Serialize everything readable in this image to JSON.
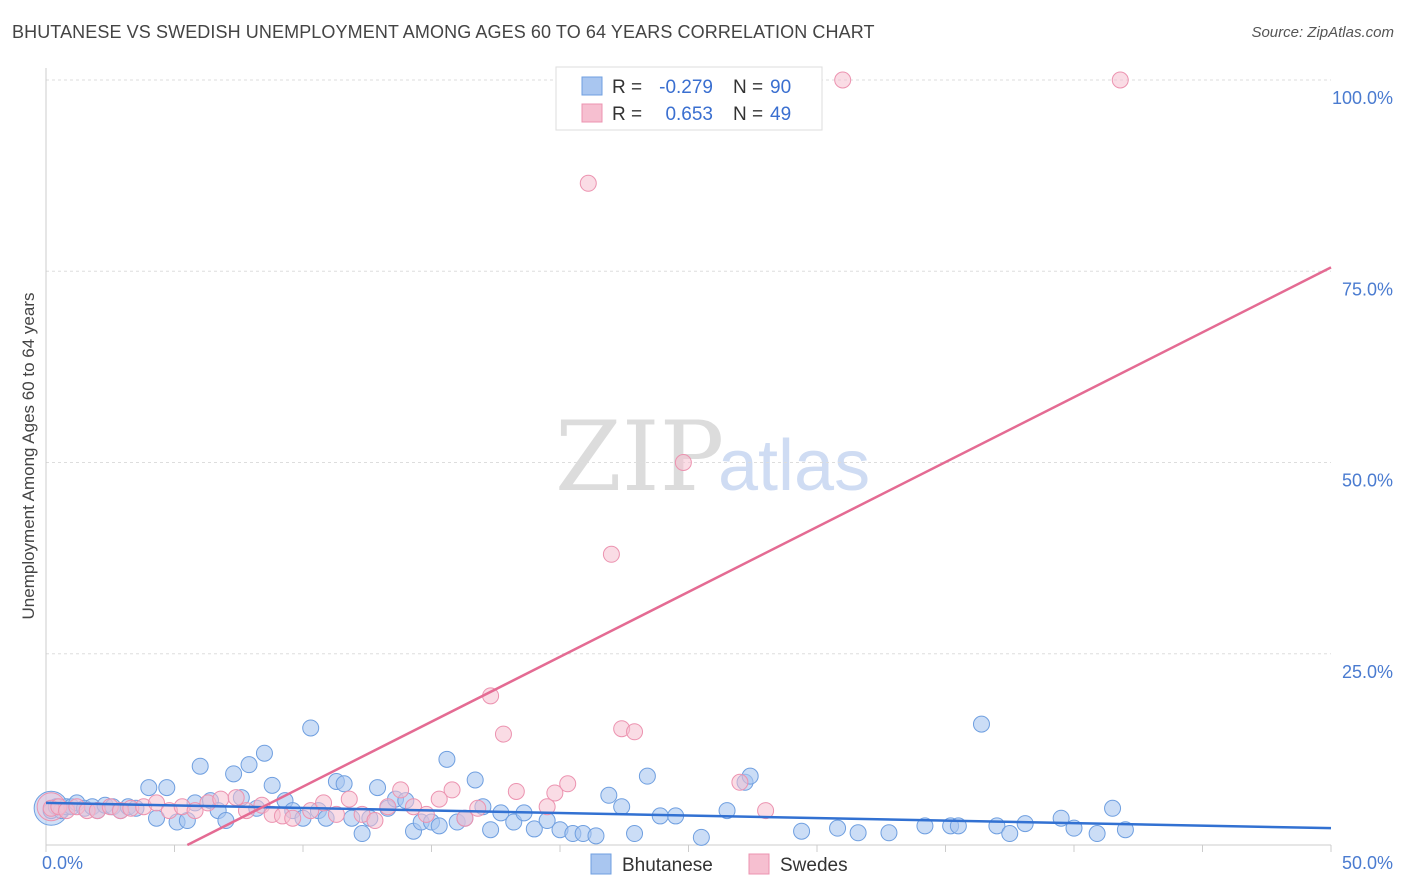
{
  "title": "BHUTANESE VS SWEDISH UNEMPLOYMENT AMONG AGES 60 TO 64 YEARS CORRELATION CHART",
  "source": "Source: ZipAtlas.com",
  "watermark": {
    "zip": "ZIP",
    "atlas": "atlas"
  },
  "legend": {
    "rows": [
      {
        "r_label": "R =",
        "r_value": "-0.279",
        "n_label": "N =",
        "n_value": "90"
      },
      {
        "r_label": "R =",
        "r_value": "0.653",
        "n_label": "N =",
        "n_value": "49"
      }
    ]
  },
  "bottom_legend": [
    "Bhutanese",
    "Swedes"
  ],
  "colors": {
    "bhutanese_fill": "#a9c6f0",
    "bhutanese_stroke": "#6f9fe0",
    "bhutanese_line": "#3271d2",
    "swedes_fill": "#f6bfd0",
    "swedes_stroke": "#ec93b0",
    "swedes_line": "#e46b93",
    "tick": "#4a7bd0",
    "grid": "#dddddd"
  },
  "chart_data": {
    "type": "scatter",
    "title": "BHUTANESE VS SWEDISH UNEMPLOYMENT AMONG AGES 60 TO 64 YEARS CORRELATION CHART",
    "xlabel": "",
    "ylabel": "Unemployment Among Ages 60 to 64 years",
    "xlim": [
      0,
      50
    ],
    "ylim": [
      0,
      100
    ],
    "x_tick_labels": [
      "0.0%",
      "50.0%"
    ],
    "y_ticks": [
      25,
      50,
      75,
      100
    ],
    "y_tick_labels": [
      "25.0%",
      "50.0%",
      "75.0%",
      "100.0%"
    ],
    "grid": true,
    "series": [
      {
        "name": "Bhutanese",
        "r": -0.279,
        "n": 90,
        "trend": {
          "x": [
            0,
            50
          ],
          "y": [
            5.5,
            2.2
          ]
        },
        "points": [
          [
            0.2,
            4.5
          ],
          [
            0.4,
            5
          ],
          [
            0.6,
            4.5
          ],
          [
            0.8,
            5
          ],
          [
            1,
            5
          ],
          [
            1.2,
            5.5
          ],
          [
            1.5,
            4.8
          ],
          [
            1.8,
            5
          ],
          [
            2,
            4.5
          ],
          [
            2.3,
            5.2
          ],
          [
            2.6,
            5
          ],
          [
            2.9,
            4.5
          ],
          [
            3.2,
            5
          ],
          [
            3.5,
            4.8
          ],
          [
            4,
            7.5
          ],
          [
            4.3,
            3.5
          ],
          [
            4.7,
            7.5
          ],
          [
            5.1,
            3
          ],
          [
            5.5,
            3.2
          ],
          [
            5.8,
            5.5
          ],
          [
            6,
            10.3
          ],
          [
            6.4,
            5.8
          ],
          [
            6.7,
            4.5
          ],
          [
            7,
            3.2
          ],
          [
            7.3,
            9.3
          ],
          [
            7.6,
            6.2
          ],
          [
            7.9,
            10.5
          ],
          [
            8.2,
            4.8
          ],
          [
            8.5,
            12
          ],
          [
            8.8,
            7.8
          ],
          [
            9.3,
            5.8
          ],
          [
            9.6,
            4.5
          ],
          [
            10,
            3.5
          ],
          [
            10.3,
            15.3
          ],
          [
            10.6,
            4.5
          ],
          [
            10.9,
            3.5
          ],
          [
            11.3,
            8.3
          ],
          [
            11.6,
            8
          ],
          [
            11.9,
            3.5
          ],
          [
            12.3,
            1.5
          ],
          [
            12.6,
            3.5
          ],
          [
            12.9,
            7.5
          ],
          [
            13.3,
            4.8
          ],
          [
            13.6,
            6
          ],
          [
            14,
            5.8
          ],
          [
            14.3,
            1.8
          ],
          [
            14.6,
            3
          ],
          [
            15,
            3
          ],
          [
            15.3,
            2.5
          ],
          [
            15.6,
            11.2
          ],
          [
            16,
            3
          ],
          [
            16.3,
            3.5
          ],
          [
            16.7,
            8.5
          ],
          [
            17,
            5
          ],
          [
            17.3,
            2
          ],
          [
            17.7,
            4.2
          ],
          [
            18.2,
            3
          ],
          [
            18.6,
            4.2
          ],
          [
            19,
            2.1
          ],
          [
            19.5,
            3.2
          ],
          [
            20,
            2
          ],
          [
            20.5,
            1.5
          ],
          [
            20.9,
            1.5
          ],
          [
            21.4,
            1.2
          ],
          [
            21.9,
            6.5
          ],
          [
            22.4,
            5
          ],
          [
            22.9,
            1.5
          ],
          [
            23.4,
            9
          ],
          [
            23.9,
            3.8
          ],
          [
            24.5,
            3.8
          ],
          [
            25.5,
            1
          ],
          [
            26.5,
            4.5
          ],
          [
            27.2,
            8.2
          ],
          [
            27.4,
            9
          ],
          [
            29.4,
            1.8
          ],
          [
            30.8,
            2.2
          ],
          [
            31.6,
            1.6
          ],
          [
            32.8,
            1.6
          ],
          [
            34.2,
            2.5
          ],
          [
            35.2,
            2.5
          ],
          [
            35.5,
            2.5
          ],
          [
            36.4,
            15.8
          ],
          [
            37,
            2.5
          ],
          [
            37.5,
            1.5
          ],
          [
            38.1,
            2.8
          ],
          [
            39.5,
            3.5
          ],
          [
            40,
            2.2
          ],
          [
            40.9,
            1.5
          ],
          [
            41.5,
            4.8
          ],
          [
            42,
            2
          ]
        ]
      },
      {
        "name": "Swedes",
        "r": 0.653,
        "n": 49,
        "trend": {
          "x": [
            5.5,
            50
          ],
          "y": [
            0,
            75.5
          ]
        },
        "points": [
          [
            0.2,
            4.8
          ],
          [
            0.5,
            5
          ],
          [
            0.8,
            4.5
          ],
          [
            1.2,
            5
          ],
          [
            1.6,
            4.5
          ],
          [
            2,
            4.5
          ],
          [
            2.5,
            5
          ],
          [
            2.9,
            4.5
          ],
          [
            3.3,
            4.8
          ],
          [
            3.8,
            5
          ],
          [
            4.3,
            5.5
          ],
          [
            4.8,
            4.5
          ],
          [
            5.3,
            5
          ],
          [
            5.8,
            4.5
          ],
          [
            6.3,
            5.5
          ],
          [
            6.8,
            6
          ],
          [
            7.4,
            6.2
          ],
          [
            7.8,
            4.5
          ],
          [
            8.4,
            5.2
          ],
          [
            8.8,
            4
          ],
          [
            9.2,
            3.8
          ],
          [
            9.6,
            3.5
          ],
          [
            10.3,
            4.5
          ],
          [
            10.8,
            5.5
          ],
          [
            11.3,
            4
          ],
          [
            11.8,
            6
          ],
          [
            12.3,
            4
          ],
          [
            12.8,
            3.2
          ],
          [
            13.3,
            5
          ],
          [
            13.8,
            7.2
          ],
          [
            14.3,
            5
          ],
          [
            14.8,
            4
          ],
          [
            15.3,
            6
          ],
          [
            15.8,
            7.2
          ],
          [
            16.3,
            3.5
          ],
          [
            16.8,
            4.8
          ],
          [
            17.3,
            19.5
          ],
          [
            17.8,
            14.5
          ],
          [
            18.3,
            7
          ],
          [
            19.5,
            5
          ],
          [
            19.8,
            6.8
          ],
          [
            20.3,
            8
          ],
          [
            21.1,
            86.5
          ],
          [
            22,
            38
          ],
          [
            22.4,
            15.2
          ],
          [
            22.9,
            14.8
          ],
          [
            24.8,
            50
          ],
          [
            27,
            8.2
          ],
          [
            28,
            4.5
          ]
        ],
        "outliers_at_top": [
          [
            31,
            100
          ],
          [
            41.8,
            100
          ]
        ]
      }
    ]
  }
}
